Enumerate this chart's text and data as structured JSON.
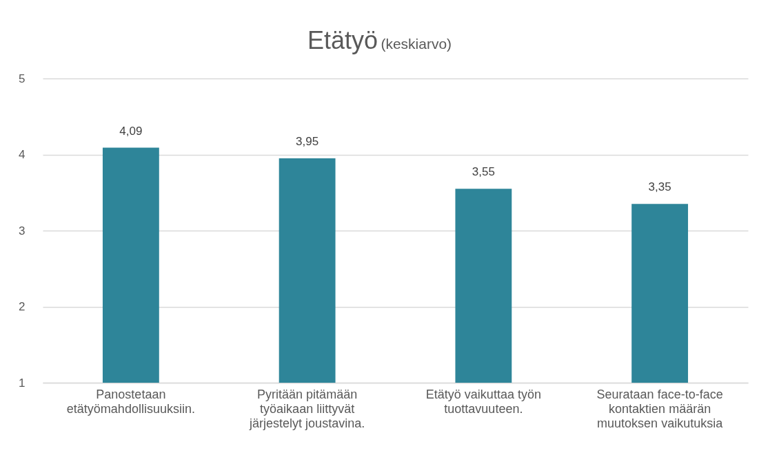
{
  "chart_data": {
    "type": "bar",
    "title": "Etätyö",
    "subtitle": "(keskiarvo)",
    "categories": [
      "Panostetaan etätyömahdollisuuksiin.",
      "Pyritään pitämään työaikaan liittyvät järjestelyt joustavina.",
      "Etätyö vaikuttaa työn tuottavuuteen.",
      "Seurataan face-to-face kontaktien määrän muutoksen vaikutuksia"
    ],
    "values": [
      4.09,
      3.95,
      3.55,
      3.35
    ],
    "color": "#2e8599",
    "ylim": [
      1,
      5
    ],
    "yticks": [
      1,
      2,
      3,
      4,
      5
    ],
    "grid": "y",
    "value_labels": [
      "4,09",
      "3,95",
      "3,55",
      "3,35"
    ]
  }
}
